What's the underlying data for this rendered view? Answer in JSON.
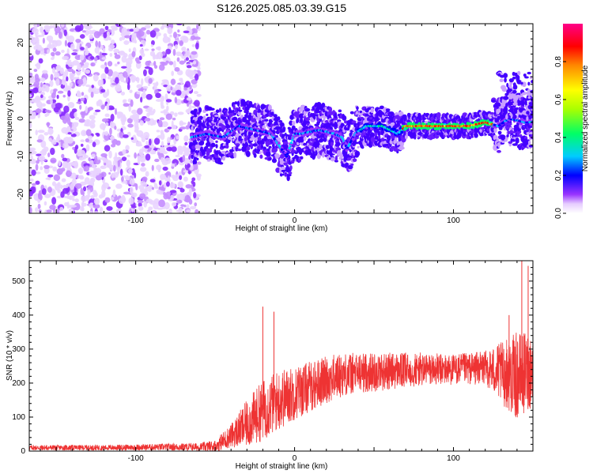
{
  "title": "S126.2025.085.03.39.G15",
  "chart_data": [
    {
      "type": "heatmap",
      "xlabel": "Height of straight line (km)",
      "ylabel": "Frequency (Hz)",
      "xlim": [
        -167,
        150
      ],
      "ylim": [
        -25,
        25
      ],
      "xticks": [
        -100,
        0,
        100
      ],
      "yticks": [
        -20,
        -10,
        0,
        10,
        20
      ],
      "colorbar": {
        "label": "Normalized spectral amplitude",
        "range": [
          0.0,
          1.0
        ],
        "ticks": [
          "0.0",
          "0.2",
          "0.4",
          "0.6",
          "0.8"
        ],
        "colors": [
          "#ffffff",
          "#e6ccff",
          "#9933ff",
          "#4400ff",
          "#0000ff",
          "#00ccff",
          "#00ff66",
          "#aaff00",
          "#ffff00",
          "#ff8800",
          "#ff0000",
          "#ff0088"
        ]
      },
      "ridge_center_frequency": {
        "x": [
          -65,
          -55,
          -45,
          -35,
          -25,
          -15,
          -5,
          0,
          5,
          15,
          25,
          30,
          33,
          38,
          45,
          55,
          60,
          65,
          70,
          80,
          90,
          100,
          110,
          120,
          128,
          135,
          145
        ],
        "y": [
          -5,
          -4,
          -5,
          -2,
          -3,
          -4,
          -10,
          -4,
          -4,
          -3,
          -4,
          -5,
          -8,
          -4,
          -2,
          -2,
          -3,
          -4,
          -2,
          -2,
          -2,
          -2,
          -2,
          -1,
          -2,
          0,
          -1
        ]
      },
      "noise_region": [
        -167,
        -60
      ]
    },
    {
      "type": "line",
      "xlabel": "Height of straight line (km)",
      "ylabel": "SNR (10 * v/v)",
      "xlim": [
        -167,
        150
      ],
      "ylim": [
        0,
        560
      ],
      "xticks": [
        -100,
        0,
        100
      ],
      "yticks": [
        0,
        100,
        200,
        300,
        400,
        500
      ],
      "color": "#ee3333",
      "envelope": {
        "x": [
          -167,
          -120,
          -80,
          -60,
          -50,
          -40,
          -30,
          -20,
          -10,
          0,
          10,
          20,
          30,
          40,
          60,
          80,
          100,
          120,
          130,
          140,
          150
        ],
        "mean": [
          10,
          10,
          12,
          12,
          15,
          45,
          80,
          120,
          150,
          170,
          190,
          210,
          225,
          230,
          235,
          240,
          240,
          245,
          230,
          220,
          240
        ],
        "spread": [
          8,
          8,
          10,
          12,
          18,
          35,
          70,
          90,
          90,
          80,
          75,
          70,
          65,
          60,
          55,
          50,
          45,
          50,
          90,
          130,
          110
        ]
      },
      "peaks": [
        {
          "x": -20,
          "y": 425
        },
        {
          "x": -13,
          "y": 410
        },
        {
          "x": 143,
          "y": 565
        },
        {
          "x": 147,
          "y": 545
        },
        {
          "x": 135,
          "y": 400
        }
      ]
    }
  ]
}
